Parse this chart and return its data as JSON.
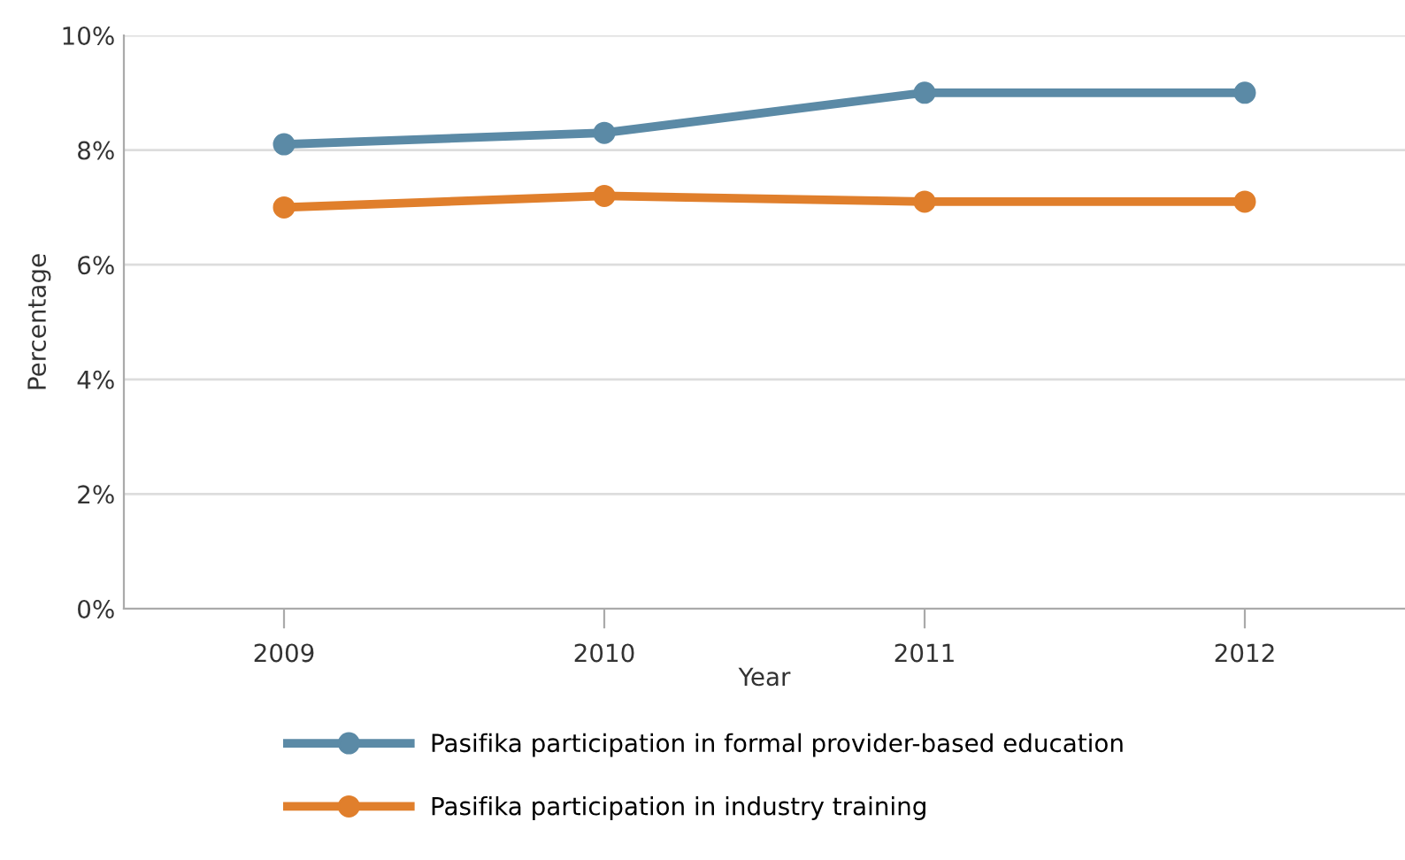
{
  "chart_data": {
    "type": "line",
    "xlabel": "Year",
    "ylabel": "Percentage",
    "categories": [
      "2009",
      "2010",
      "2011",
      "2012"
    ],
    "series": [
      {
        "name": "Pasifika participation in formal provider-based education",
        "color": "#5b8aa6",
        "values": [
          8.1,
          8.3,
          9.0,
          9.0
        ]
      },
      {
        "name": "Pasifika participation in industry training",
        "color": "#e07f2c",
        "values": [
          7.0,
          7.2,
          7.1,
          7.1
        ]
      }
    ],
    "ylim": [
      0,
      10
    ],
    "yticks": [
      {
        "value": 0,
        "label": "0%"
      },
      {
        "value": 2,
        "label": "2%"
      },
      {
        "value": 4,
        "label": "4%"
      },
      {
        "value": 6,
        "label": "6%"
      },
      {
        "value": 8,
        "label": "8%"
      },
      {
        "value": 10,
        "label": "10%"
      }
    ],
    "grid": "y",
    "legend": "bottom",
    "marker": "circle",
    "line_style": "solid"
  }
}
